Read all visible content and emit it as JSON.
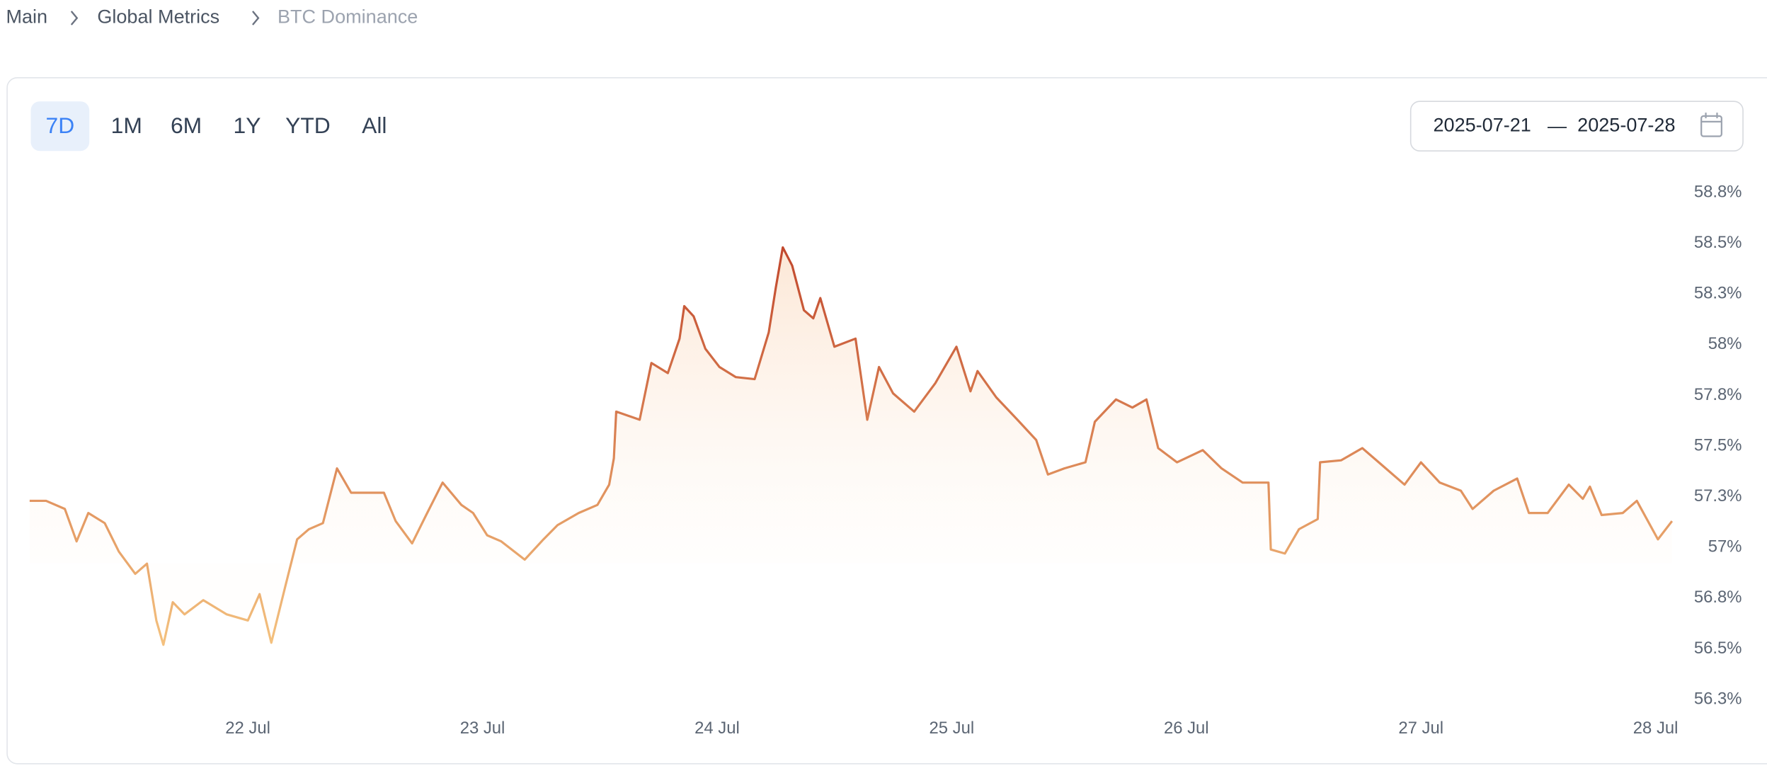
{
  "breadcrumb": [
    "Main",
    "Global Metrics",
    "BTC Dominance"
  ],
  "ranges": [
    "7D",
    "1M",
    "6M",
    "1Y",
    "YTD",
    "All"
  ],
  "active_range": "7D",
  "date_range": {
    "start": "2025-07-21",
    "separator": "—",
    "end": "2025-07-28"
  },
  "chart_data": {
    "type": "area",
    "color_high": "#c0442a",
    "color_low": "#f5c480",
    "x": [
      21.07,
      21.14,
      21.22,
      21.27,
      21.32,
      21.39,
      21.45,
      21.52,
      21.57,
      21.61,
      21.64,
      21.68,
      21.73,
      21.81,
      21.91,
      22.0,
      22.05,
      22.1,
      22.16,
      22.21,
      22.26,
      22.32,
      22.38,
      22.44,
      22.51,
      22.58,
      22.63,
      22.7,
      22.76,
      22.83,
      22.91,
      22.96,
      23.02,
      23.08,
      23.18,
      23.26,
      23.32,
      23.41,
      23.49,
      23.54,
      23.56,
      23.57,
      23.67,
      23.72,
      23.79,
      23.84,
      23.86,
      23.9,
      23.95,
      24.01,
      24.08,
      24.16,
      24.22,
      24.25,
      24.28,
      24.32,
      24.37,
      24.41,
      24.44,
      24.5,
      24.59,
      24.64,
      24.69,
      24.75,
      24.84,
      24.93,
      25.02,
      25.08,
      25.11,
      25.19,
      25.28,
      25.36,
      25.41,
      25.48,
      25.57,
      25.61,
      25.7,
      25.77,
      25.83,
      25.88,
      25.96,
      26.07,
      26.15,
      26.24,
      26.35,
      26.36,
      26.42,
      26.48,
      26.56,
      26.57,
      26.66,
      26.75,
      26.83,
      26.93,
      27.0,
      27.08,
      27.17,
      27.22,
      27.31,
      27.41,
      27.46,
      27.54,
      27.63,
      27.69,
      27.72,
      27.77,
      27.86,
      27.92,
      28.01,
      28.07
    ],
    "values": [
      57.23,
      57.23,
      57.19,
      57.03,
      57.17,
      57.12,
      56.98,
      56.87,
      56.92,
      56.64,
      56.52,
      56.73,
      56.67,
      56.74,
      56.67,
      56.64,
      56.77,
      56.53,
      56.81,
      57.04,
      57.09,
      57.12,
      57.39,
      57.27,
      57.27,
      57.27,
      57.13,
      57.02,
      57.16,
      57.32,
      57.21,
      57.17,
      57.06,
      57.03,
      56.94,
      57.04,
      57.11,
      57.17,
      57.21,
      57.31,
      57.44,
      57.67,
      57.63,
      57.91,
      57.86,
      58.03,
      58.19,
      58.14,
      57.98,
      57.89,
      57.84,
      57.83,
      58.06,
      58.28,
      58.48,
      58.39,
      58.17,
      58.13,
      58.23,
      57.99,
      58.03,
      57.63,
      57.89,
      57.76,
      57.67,
      57.81,
      57.99,
      57.77,
      57.87,
      57.74,
      57.63,
      57.53,
      57.36,
      57.39,
      57.42,
      57.62,
      57.73,
      57.69,
      57.73,
      57.49,
      57.42,
      57.48,
      57.39,
      57.32,
      57.32,
      56.99,
      56.97,
      57.09,
      57.14,
      57.42,
      57.43,
      57.49,
      57.41,
      57.31,
      57.42,
      57.32,
      57.28,
      57.19,
      57.28,
      57.34,
      57.17,
      57.17,
      57.31,
      57.24,
      57.3,
      57.16,
      57.17,
      57.23,
      57.04,
      57.13
    ],
    "xlim": [
      21.07,
      28.07
    ],
    "xticks": [
      {
        "value": 22,
        "label": "22 Jul"
      },
      {
        "value": 23,
        "label": "23 Jul"
      },
      {
        "value": 24,
        "label": "24 Jul"
      },
      {
        "value": 25,
        "label": "25 Jul"
      },
      {
        "value": 26,
        "label": "26 Jul"
      },
      {
        "value": 27,
        "label": "27 Jul"
      },
      {
        "value": 28,
        "label": "28 Jul"
      }
    ],
    "ylim": [
      56.2,
      58.9
    ],
    "yticks": [
      {
        "value": 58.75,
        "label": "58.8%"
      },
      {
        "value": 58.5,
        "label": "58.5%"
      },
      {
        "value": 58.25,
        "label": "58.3%"
      },
      {
        "value": 58,
        "label": "58%"
      },
      {
        "value": 57.75,
        "label": "57.8%"
      },
      {
        "value": 57.5,
        "label": "57.5%"
      },
      {
        "value": 57.25,
        "label": "57.3%"
      },
      {
        "value": 57,
        "label": "57%"
      },
      {
        "value": 56.75,
        "label": "56.8%"
      },
      {
        "value": 56.5,
        "label": "56.5%"
      },
      {
        "value": 56.25,
        "label": "56.3%"
      }
    ],
    "grid": false
  }
}
